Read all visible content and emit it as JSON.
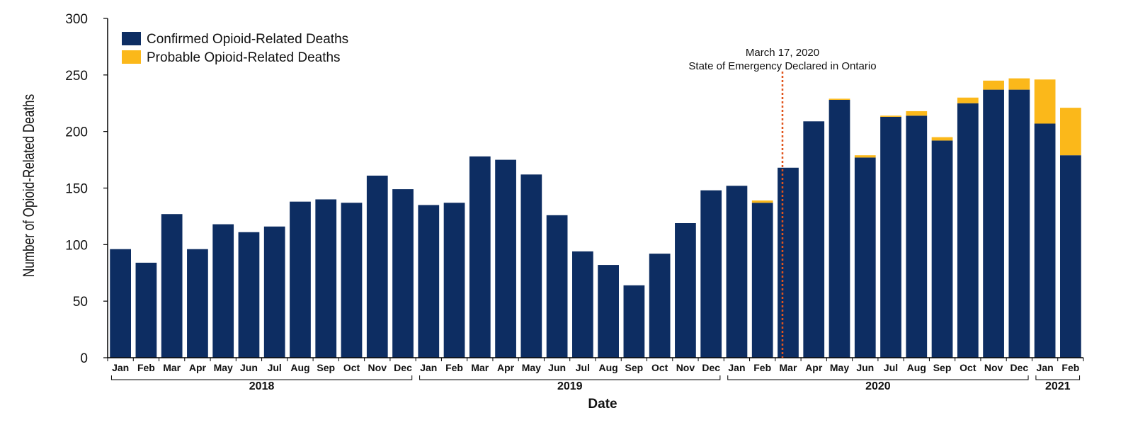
{
  "chart_data": {
    "type": "bar",
    "stacked": true,
    "xlabel": "Date",
    "ylabel": "Number of Opioid-Related Deaths",
    "ylim": [
      0,
      300
    ],
    "yticks": [
      "0",
      "50",
      "100",
      "150",
      "200",
      "250",
      "300"
    ],
    "categories": [
      "Jan",
      "Feb",
      "Mar",
      "Apr",
      "May",
      "Jun",
      "Jul",
      "Aug",
      "Sep",
      "Oct",
      "Nov",
      "Dec",
      "Jan",
      "Feb",
      "Mar",
      "Apr",
      "May",
      "Jun",
      "Jul",
      "Aug",
      "Sep",
      "Oct",
      "Nov",
      "Dec",
      "Jan",
      "Feb",
      "Mar",
      "Apr",
      "May",
      "Jun",
      "Jul",
      "Aug",
      "Sep",
      "Oct",
      "Nov",
      "Dec",
      "Jan",
      "Feb"
    ],
    "year_groups": [
      {
        "label": "2018",
        "start": 0,
        "end": 11
      },
      {
        "label": "2019",
        "start": 12,
        "end": 23
      },
      {
        "label": "2020",
        "start": 24,
        "end": 35
      },
      {
        "label": "2021",
        "start": 36,
        "end": 37
      }
    ],
    "series": [
      {
        "name": "Confirmed Opioid-Related Deaths",
        "color": "#0d2d62",
        "values": [
          96,
          84,
          127,
          96,
          118,
          111,
          116,
          138,
          140,
          137,
          161,
          149,
          135,
          137,
          178,
          175,
          162,
          126,
          94,
          82,
          64,
          92,
          119,
          148,
          152,
          137,
          168,
          209,
          228,
          177,
          213,
          214,
          192,
          225,
          237,
          237,
          207,
          179
        ]
      },
      {
        "name": "Probable Opioid-Related Deaths",
        "color": "#fbb81a",
        "values": [
          0,
          0,
          0,
          0,
          0,
          0,
          0,
          0,
          0,
          0,
          0,
          0,
          0,
          0,
          0,
          0,
          0,
          0,
          0,
          0,
          0,
          0,
          0,
          0,
          0,
          2,
          0,
          0,
          1,
          2,
          1,
          4,
          3,
          5,
          8,
          10,
          39,
          42
        ]
      }
    ],
    "annotation": {
      "line1": "March 17, 2020",
      "line2": "State of Emergency Declared in Ontario",
      "category_index": 26,
      "color": "#e0541d"
    },
    "legend": "top-left",
    "grid": false
  }
}
